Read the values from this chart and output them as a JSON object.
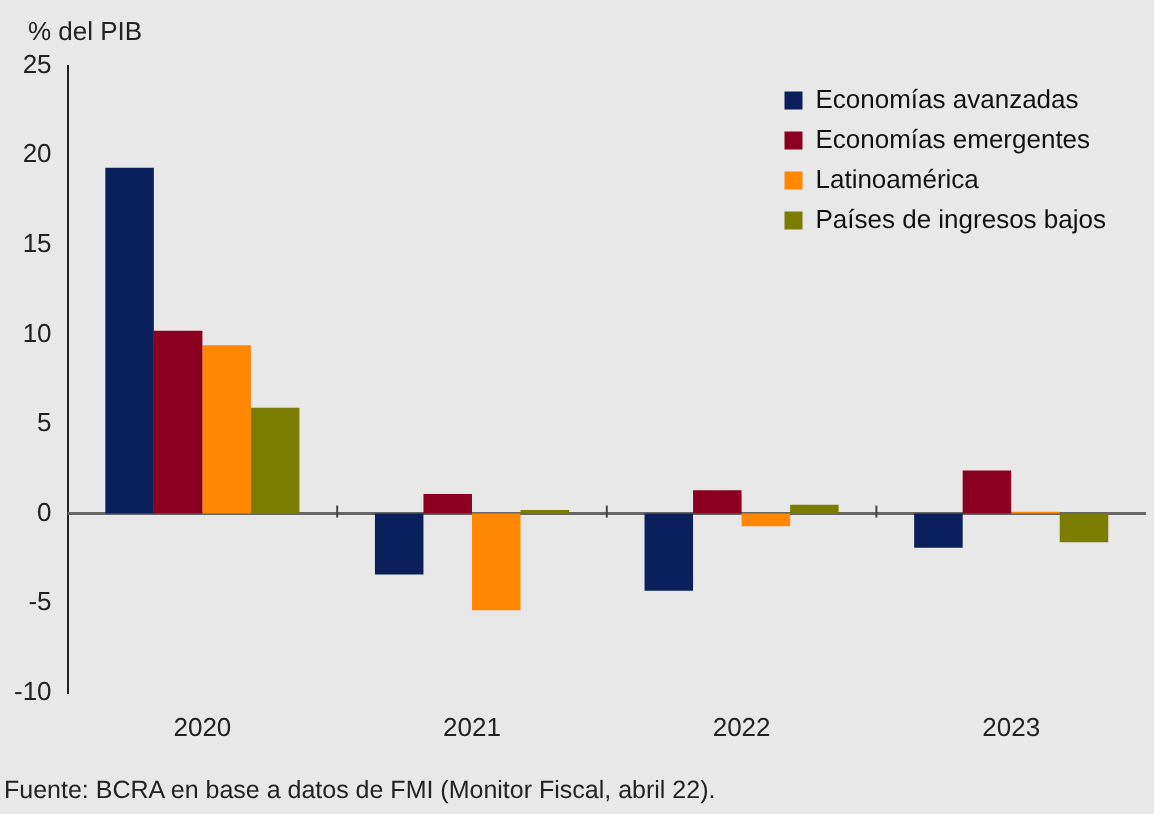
{
  "chart_data": {
    "type": "bar",
    "ylabel": "% del PIB",
    "categories": [
      "2020",
      "2021",
      "2022",
      "2023"
    ],
    "series": [
      {
        "name": "Economías avanzadas",
        "color": "#0a1f5c",
        "values": [
          19.3,
          -3.4,
          -4.3,
          -1.9
        ]
      },
      {
        "name": "Economías emergentes",
        "color": "#8b0020",
        "values": [
          10.2,
          1.1,
          1.3,
          2.4
        ]
      },
      {
        "name": "Latinoamérica",
        "color": "#ff8800",
        "values": [
          9.4,
          -5.4,
          -0.7,
          0.1
        ]
      },
      {
        "name": "Países de ingresos bajos",
        "color": "#7a7d00",
        "values": [
          5.9,
          0.2,
          0.5,
          -1.6
        ]
      }
    ],
    "ref_lines": [
      {
        "axis": "y",
        "value": 0,
        "color": "#666666"
      }
    ],
    "ylim": [
      -10,
      25
    ],
    "yticks": [
      -10,
      -5,
      0,
      5,
      10,
      15,
      20,
      25
    ],
    "grid": false,
    "legend": "top right",
    "annotations": [
      "Fuente: BCRA en base a datos de FMI (Monitor Fiscal, abril 22)."
    ]
  }
}
